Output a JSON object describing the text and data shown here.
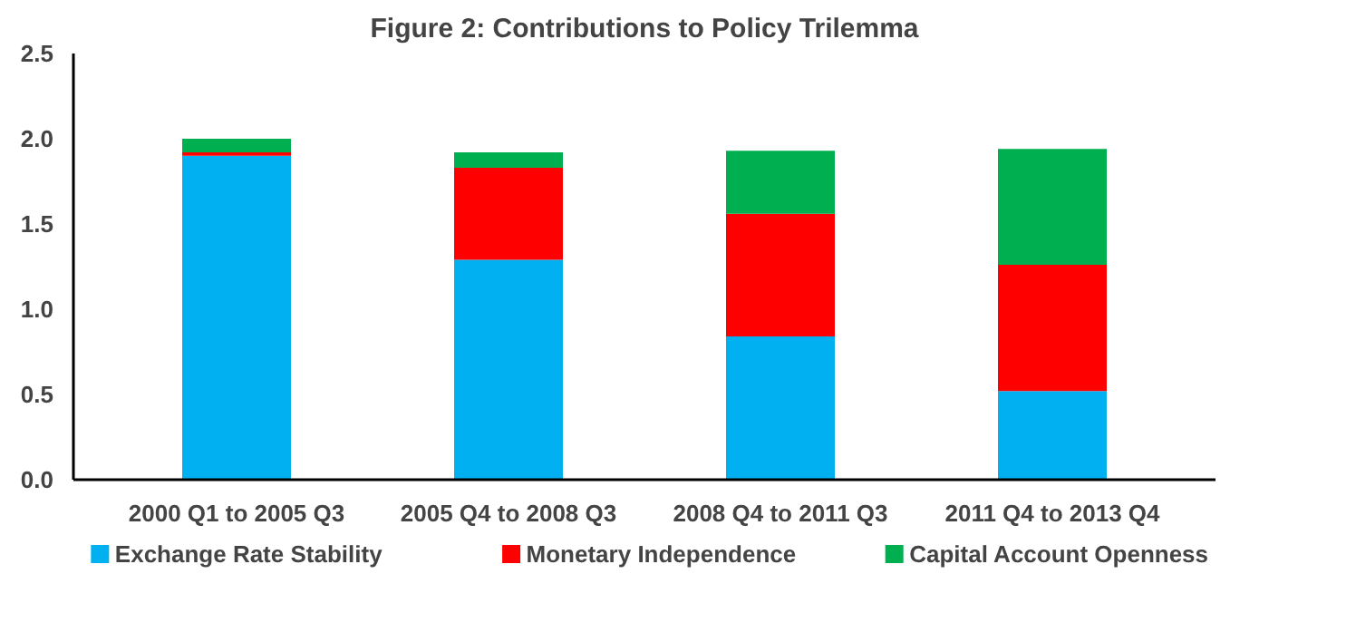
{
  "chart_data": {
    "type": "bar",
    "stacked": true,
    "title": "Figure 2: Contributions to Policy Trilemma",
    "categories": [
      "2000 Q1 to 2005 Q3",
      "2005 Q4 to 2008 Q3",
      "2008 Q4 to 2011 Q3",
      "2011 Q4 to 2013 Q4"
    ],
    "series": [
      {
        "name": "Exchange Rate Stability",
        "color": "#00b0f0",
        "values": [
          1.9,
          1.29,
          0.84,
          0.52
        ]
      },
      {
        "name": "Monetary Independence",
        "color": "#ff0000",
        "values": [
          0.02,
          0.54,
          0.72,
          0.74
        ]
      },
      {
        "name": "Capital Account Openness",
        "color": "#00b050",
        "values": [
          0.08,
          0.09,
          0.37,
          0.68
        ]
      }
    ],
    "ylim": [
      0,
      2.5
    ],
    "yticks": [
      {
        "value": 0,
        "label": "0.0"
      },
      {
        "value": 0.5,
        "label": "0.5"
      },
      {
        "value": 1,
        "label": "1.0"
      },
      {
        "value": 1.5,
        "label": "1.5"
      },
      {
        "value": 2,
        "label": "2.0"
      },
      {
        "value": 2.5,
        "label": "2.5"
      }
    ],
    "grid": false,
    "legend": "bottom"
  }
}
